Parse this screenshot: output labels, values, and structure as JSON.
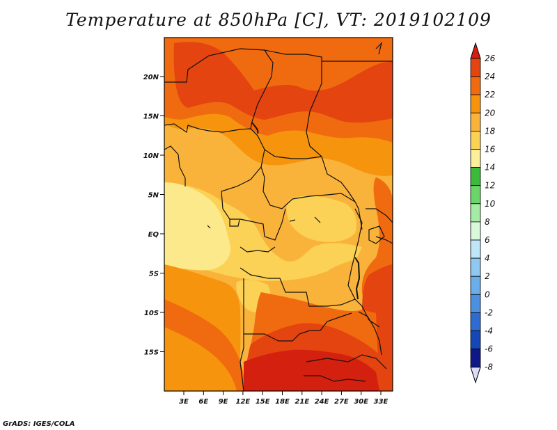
{
  "title": "Temperature at 850hPa [C], VT: 2019102109",
  "credit": "GrADS: IGES/COLA",
  "map": {
    "variable": "Temperature at 850hPa",
    "units": "C",
    "valid_time": "2019102109",
    "lat_labels": [
      "20N",
      "15N",
      "10N",
      "5N",
      "EQ",
      "5S",
      "10S",
      "15S"
    ],
    "lon_labels": [
      "3E",
      "6E",
      "9E",
      "12E",
      "15E",
      "18E",
      "21E",
      "24E",
      "27E",
      "30E",
      "33E"
    ]
  },
  "colorbar": {
    "levels": [
      "26",
      "24",
      "22",
      "20",
      "18",
      "16",
      "14",
      "12",
      "10",
      "8",
      "6",
      "4",
      "2",
      "0",
      "-2",
      "-4",
      "-6",
      "-8"
    ],
    "colors": [
      "#d4200e",
      "#e44410",
      "#f06a10",
      "#f6940e",
      "#f9b33a",
      "#fbd256",
      "#fcee9a",
      "#3cba3c",
      "#6ad66a",
      "#a4ecA4",
      "#daf8da",
      "#bfe6f8",
      "#8fc9f2",
      "#6aaeea",
      "#4e90e0",
      "#2e6cd2",
      "#1448b8",
      "#101888",
      "#0c1060"
    ],
    "top_color": "#d4200e",
    "bottom_color": "#dcdcf8"
  },
  "colors": {
    "t26": "#d4200e",
    "t24": "#e44410",
    "t22": "#f06a10",
    "t20": "#f6940e",
    "t18": "#f9b33a",
    "t16": "#fbd256",
    "t14": "#fce98c"
  }
}
